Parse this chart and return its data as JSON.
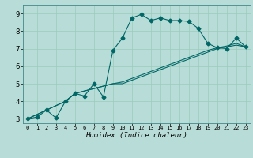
{
  "xlabel": "Humidex (Indice chaleur)",
  "bg_color": "#b8ddd8",
  "grid_color": "#99ccbb",
  "line_color": "#006666",
  "xlim": [
    -0.5,
    23.5
  ],
  "ylim": [
    2.75,
    9.5
  ],
  "xticks": [
    0,
    1,
    2,
    3,
    4,
    5,
    6,
    7,
    8,
    9,
    10,
    11,
    12,
    13,
    14,
    15,
    16,
    17,
    18,
    19,
    20,
    21,
    22,
    23
  ],
  "yticks": [
    3,
    4,
    5,
    6,
    7,
    8,
    9
  ],
  "line1_x": [
    0,
    1,
    2,
    3,
    4,
    5,
    6,
    7,
    8,
    9,
    10,
    11,
    12,
    13,
    14,
    15,
    16,
    17,
    18,
    19,
    20,
    21,
    22,
    23
  ],
  "line1_y": [
    3.0,
    3.1,
    3.5,
    3.05,
    4.0,
    4.45,
    4.3,
    5.0,
    4.25,
    6.9,
    7.6,
    8.75,
    8.95,
    8.6,
    8.75,
    8.6,
    8.6,
    8.55,
    8.15,
    7.3,
    7.05,
    7.0,
    7.6,
    7.1
  ],
  "line2_x": [
    0,
    2,
    4,
    5,
    9,
    10,
    11,
    12,
    13,
    14,
    15,
    16,
    17,
    18,
    19,
    20,
    21,
    22,
    23
  ],
  "line2_y": [
    3.0,
    3.5,
    4.0,
    4.45,
    5.0,
    5.1,
    5.3,
    5.5,
    5.7,
    5.9,
    6.1,
    6.3,
    6.5,
    6.7,
    6.9,
    7.05,
    7.15,
    7.3,
    7.1
  ],
  "line3_x": [
    0,
    2,
    4,
    5,
    9,
    10,
    11,
    12,
    13,
    14,
    15,
    16,
    17,
    18,
    19,
    20,
    21,
    22,
    23
  ],
  "line3_y": [
    3.0,
    3.5,
    4.0,
    4.45,
    5.0,
    5.0,
    5.2,
    5.4,
    5.6,
    5.8,
    6.0,
    6.2,
    6.4,
    6.6,
    6.8,
    7.0,
    7.1,
    7.2,
    7.1
  ],
  "marker": "D",
  "markersize": 2.5
}
